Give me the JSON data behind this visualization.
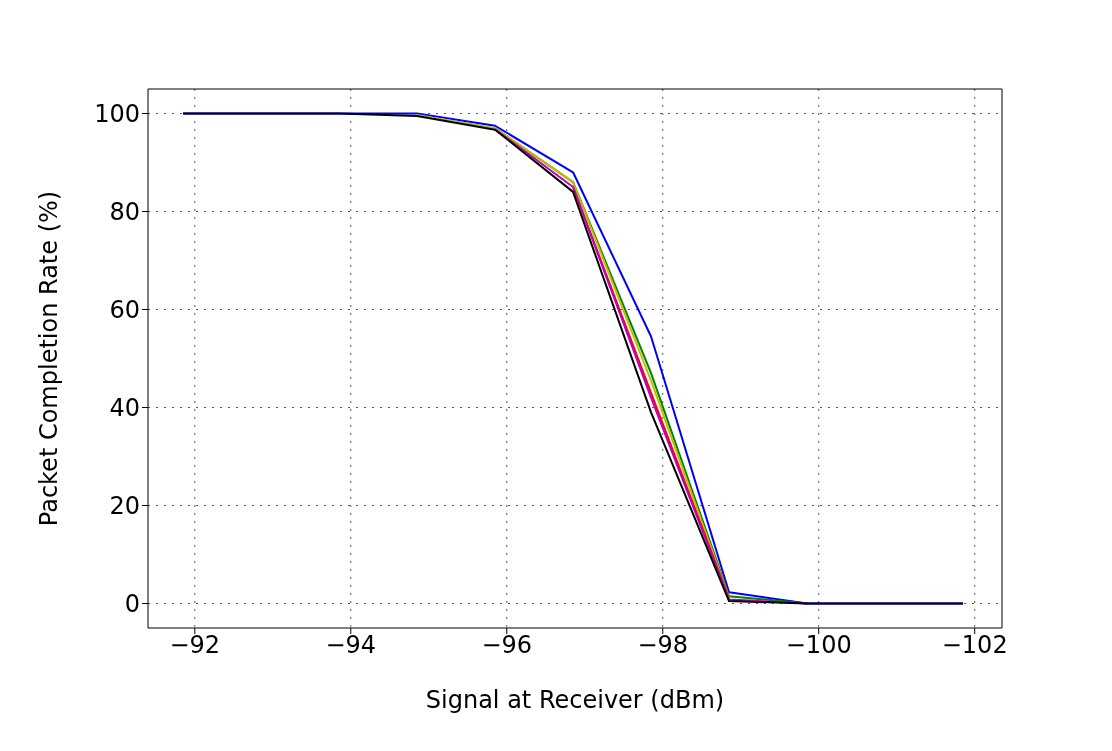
{
  "chart_data": {
    "type": "line",
    "xlabel": "Signal at Receiver (dBm)",
    "ylabel": "Packet Completion Rate (%)",
    "x": [
      -91.85,
      -92.85,
      -93.85,
      -94.85,
      -95.85,
      -96.85,
      -97.85,
      -98.85,
      -99.85,
      -100.85,
      -101.85
    ],
    "series": [
      {
        "color": "#0000ff",
        "values": [
          100,
          100,
          100,
          100,
          97.5,
          88,
          54.5,
          2.3,
          0,
          0,
          0
        ]
      },
      {
        "color": "#008000",
        "values": [
          null,
          null,
          null,
          null,
          97,
          86,
          47,
          1.5,
          0,
          null,
          null
        ]
      },
      {
        "color": "#bfbf00",
        "values": [
          null,
          null,
          null,
          99.7,
          97,
          86,
          45.5,
          1.2,
          null,
          null,
          null
        ]
      },
      {
        "color": "#ff0000",
        "values": [
          null,
          null,
          null,
          null,
          null,
          85,
          43,
          1,
          null,
          null,
          null
        ]
      },
      {
        "color": "#bf00bf",
        "values": [
          null,
          null,
          null,
          null,
          96.8,
          85,
          42,
          0.8,
          0,
          null,
          null
        ]
      },
      {
        "color": "#000000",
        "values": [
          100,
          100,
          100,
          99.5,
          96.7,
          84,
          39,
          0.5,
          0,
          0,
          0
        ]
      }
    ],
    "xlim": [
      -91.4,
      -102.35
    ],
    "xticks": [
      -92,
      -94,
      -96,
      -98,
      -100,
      -102
    ],
    "ylim": [
      -5,
      105
    ],
    "yticks": [
      0,
      20,
      40,
      60,
      80,
      100
    ],
    "grid": true,
    "line_style": "solid",
    "marker": "none",
    "legend": false
  }
}
